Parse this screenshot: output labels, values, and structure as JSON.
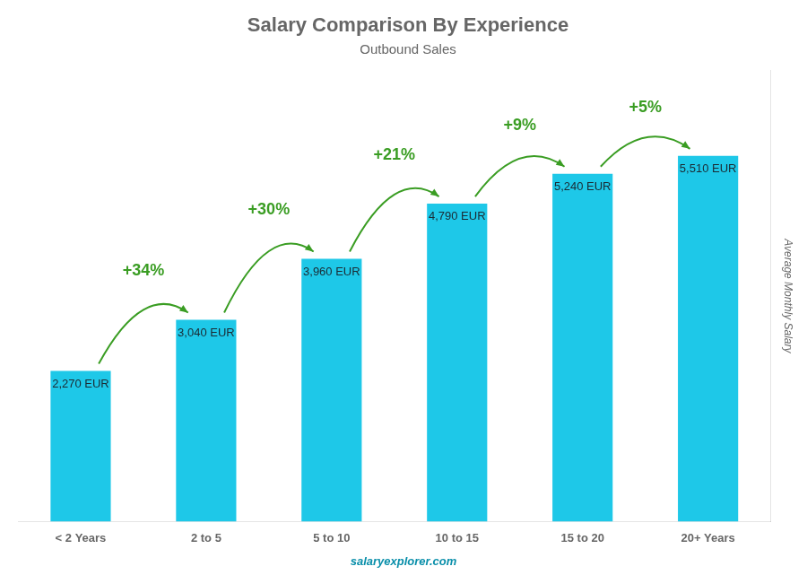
{
  "chart_data": {
    "type": "bar",
    "title": "Salary Comparison By Experience",
    "subtitle": "Outbound Sales",
    "y_label": "Average Monthly Salary",
    "categories": [
      "< 2 Years",
      "2 to 5",
      "5 to 10",
      "10 to 15",
      "15 to 20",
      "20+ Years"
    ],
    "values": [
      2270,
      3040,
      3960,
      4790,
      5240,
      5510
    ],
    "value_labels": [
      "2,270 EUR",
      "3,040 EUR",
      "3,960 EUR",
      "4,790 EUR",
      "5,240 EUR",
      "5,510 EUR"
    ],
    "data_labels": true,
    "color": "#1EC8E8",
    "ylim": [
      0,
      6800
    ],
    "grid": false,
    "tick_labels": "x",
    "annotations": [
      {
        "text": "+34%",
        "from": "< 2 Years",
        "to": "2 to 5"
      },
      {
        "text": "+30%",
        "from": "2 to 5",
        "to": "5 to 10"
      },
      {
        "text": "+21%",
        "from": "5 to 10",
        "to": "10 to 15"
      },
      {
        "text": "+9%",
        "from": "10 to 15",
        "to": "15 to 20"
      },
      {
        "text": "+5%",
        "from": "15 to 20",
        "to": "20+ Years"
      },
      {
        "text": "salaryexplorer.com"
      }
    ]
  }
}
